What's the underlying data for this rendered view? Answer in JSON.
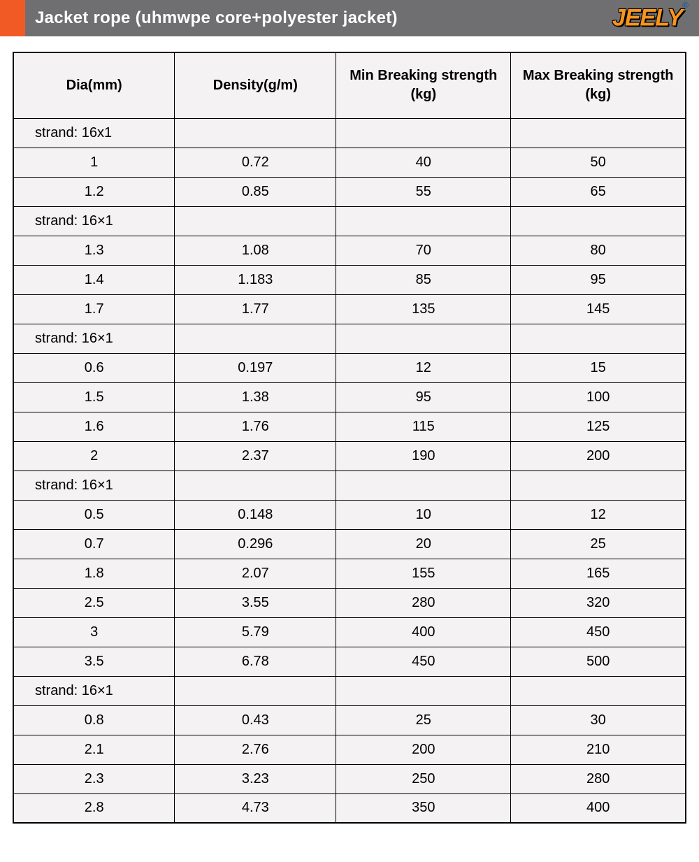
{
  "header": {
    "title": "Jacket rope (uhmwpe core+polyester jacket)",
    "brand": "JEELY",
    "accent_color": "#f15a24",
    "bar_color": "#6f6e71",
    "brand_color": "#f7941d"
  },
  "table": {
    "columns": [
      "Dia(mm)",
      "Density(g/m)",
      "Min Breaking strength  (kg)",
      "Max Breaking strength  (kg)"
    ],
    "background_color": "#f4f2f3",
    "border_color": "#000000",
    "rows": [
      {
        "type": "strand",
        "label": "strand:  16x1"
      },
      {
        "type": "data",
        "dia": "1",
        "density": "0.72",
        "min": "40",
        "max": "50"
      },
      {
        "type": "data",
        "dia": "1.2",
        "density": "0.85",
        "min": "55",
        "max": "65"
      },
      {
        "type": "strand",
        "label": "strand:  16×1"
      },
      {
        "type": "data",
        "dia": "1.3",
        "density": "1.08",
        "min": "70",
        "max": "80"
      },
      {
        "type": "data",
        "dia": "1.4",
        "density": "1.183",
        "min": "85",
        "max": "95"
      },
      {
        "type": "data",
        "dia": "1.7",
        "density": "1.77",
        "min": "135",
        "max": "145"
      },
      {
        "type": "strand",
        "label": "strand:  16×1"
      },
      {
        "type": "data",
        "dia": "0.6",
        "density": "0.197",
        "min": "12",
        "max": "15"
      },
      {
        "type": "data",
        "dia": "1.5",
        "density": "1.38",
        "min": "95",
        "max": "100"
      },
      {
        "type": "data",
        "dia": "1.6",
        "density": "1.76",
        "min": "115",
        "max": "125"
      },
      {
        "type": "data",
        "dia": "2",
        "density": "2.37",
        "min": "190",
        "max": "200"
      },
      {
        "type": "strand",
        "label": "strand:  16×1"
      },
      {
        "type": "data",
        "dia": "0.5",
        "density": "0.148",
        "min": "10",
        "max": "12"
      },
      {
        "type": "data",
        "dia": "0.7",
        "density": "0.296",
        "min": "20",
        "max": "25"
      },
      {
        "type": "data",
        "dia": "1.8",
        "density": "2.07",
        "min": "155",
        "max": "165"
      },
      {
        "type": "data",
        "dia": "2.5",
        "density": "3.55",
        "min": "280",
        "max": "320"
      },
      {
        "type": "data",
        "dia": "3",
        "density": "5.79",
        "min": "400",
        "max": "450"
      },
      {
        "type": "data",
        "dia": "3.5",
        "density": "6.78",
        "min": "450",
        "max": "500"
      },
      {
        "type": "strand",
        "label": "strand:  16×1"
      },
      {
        "type": "data",
        "dia": "0.8",
        "density": "0.43",
        "min": "25",
        "max": "30"
      },
      {
        "type": "data",
        "dia": "2.1",
        "density": "2.76",
        "min": "200",
        "max": "210"
      },
      {
        "type": "data",
        "dia": "2.3",
        "density": "3.23",
        "min": "250",
        "max": "280"
      },
      {
        "type": "data",
        "dia": "2.8",
        "density": "4.73",
        "min": "350",
        "max": "400"
      }
    ]
  }
}
